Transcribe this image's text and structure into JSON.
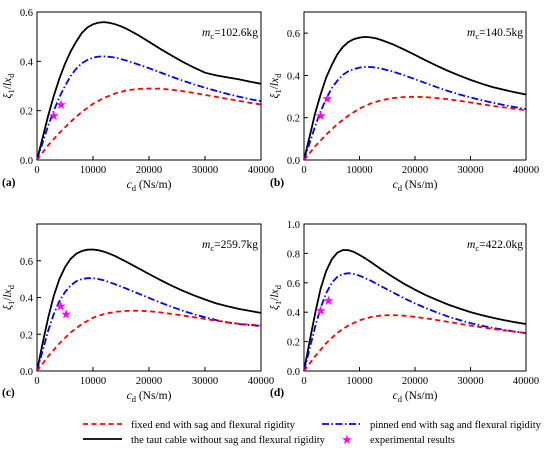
{
  "legend": {
    "fixed": "fixed end with sag and flexural rigidity",
    "pinned": "pinned end with sag and flexural rigidity",
    "taut": "the taut cable without sag and flexural rigidity",
    "experimental": "experimental results"
  },
  "styles": {
    "taut": {
      "color": "#000000",
      "dash": "none"
    },
    "pinned": {
      "color": "#0000ff",
      "dash": "7,2.5,1.5,2.5"
    },
    "fixed": {
      "color": "#ff0000",
      "dash": "5,3.5"
    },
    "experimental": {
      "color": "#ff00ff"
    }
  },
  "chart_data": [
    {
      "type": "line",
      "panel": "(a)",
      "annotation_mass": "102.6kg",
      "ylim": [
        0,
        0.6
      ],
      "yticks": [
        "0.0",
        "0.2",
        "0.4",
        "0.6"
      ],
      "xlim": [
        0,
        40000
      ],
      "xticks": [
        "0",
        "10000",
        "20000",
        "30000",
        "40000"
      ],
      "series": [
        {
          "key": "taut",
          "x": [
            0,
            1000,
            2000,
            3000,
            4000,
            5000,
            6000,
            7000,
            8000,
            9000,
            10000,
            11000,
            12000,
            13000,
            14000,
            15000,
            16000,
            18000,
            20000,
            22000,
            24000,
            26000,
            28000,
            30000,
            32000,
            34000,
            36000,
            38000,
            40000
          ],
          "y": [
            0,
            0.09,
            0.18,
            0.26,
            0.33,
            0.39,
            0.44,
            0.48,
            0.515,
            0.537,
            0.55,
            0.557,
            0.559,
            0.556,
            0.55,
            0.542,
            0.532,
            0.507,
            0.479,
            0.451,
            0.424,
            0.398,
            0.375,
            0.354,
            0.343,
            0.335,
            0.327,
            0.318,
            0.309
          ]
        },
        {
          "key": "pinned",
          "x": [
            0,
            1000,
            2000,
            3000,
            4000,
            5000,
            6000,
            7000,
            8000,
            9000,
            10000,
            11000,
            12000,
            13000,
            14000,
            16000,
            18000,
            20000,
            22000,
            24000,
            26000,
            28000,
            30000,
            32000,
            34000,
            36000,
            38000,
            40000
          ],
          "y": [
            0,
            0.07,
            0.14,
            0.2,
            0.255,
            0.3,
            0.34,
            0.37,
            0.392,
            0.406,
            0.415,
            0.419,
            0.42,
            0.418,
            0.415,
            0.403,
            0.388,
            0.372,
            0.355,
            0.338,
            0.322,
            0.307,
            0.293,
            0.28,
            0.268,
            0.257,
            0.247,
            0.238
          ]
        },
        {
          "key": "fixed",
          "x": [
            0,
            2000,
            4000,
            6000,
            8000,
            10000,
            12000,
            14000,
            16000,
            18000,
            20000,
            22000,
            24000,
            26000,
            28000,
            30000,
            32000,
            34000,
            36000,
            38000,
            40000
          ],
          "y": [
            0,
            0.06,
            0.11,
            0.155,
            0.195,
            0.228,
            0.252,
            0.27,
            0.282,
            0.288,
            0.29,
            0.289,
            0.285,
            0.279,
            0.272,
            0.264,
            0.256,
            0.248,
            0.24,
            0.232,
            0.225
          ]
        }
      ],
      "experimental": [
        [
          3000,
          0.18
        ],
        [
          4300,
          0.225
        ]
      ]
    },
    {
      "type": "line",
      "panel": "(b)",
      "annotation_mass": "140.5kg",
      "ylim": [
        0,
        0.7
      ],
      "yticks": [
        "0.0",
        "0.2",
        "0.4",
        "0.6"
      ],
      "xlim": [
        0,
        40000
      ],
      "xticks": [
        "0",
        "10000",
        "20000",
        "30000",
        "40000"
      ],
      "series": [
        {
          "key": "taut",
          "x": [
            0,
            1000,
            2000,
            3000,
            4000,
            5000,
            6000,
            7000,
            8000,
            9000,
            10000,
            11000,
            12000,
            13000,
            14000,
            16000,
            18000,
            20000,
            22000,
            24000,
            26000,
            28000,
            30000,
            32000,
            34000,
            36000,
            38000,
            40000
          ],
          "y": [
            0,
            0.11,
            0.22,
            0.31,
            0.39,
            0.45,
            0.5,
            0.535,
            0.558,
            0.572,
            0.579,
            0.582,
            0.58,
            0.575,
            0.567,
            0.547,
            0.523,
            0.497,
            0.47,
            0.445,
            0.421,
            0.399,
            0.379,
            0.361,
            0.345,
            0.332,
            0.32,
            0.31
          ]
        },
        {
          "key": "pinned",
          "x": [
            0,
            1000,
            2000,
            3000,
            4000,
            5000,
            6000,
            7000,
            8000,
            9000,
            10000,
            11000,
            12000,
            13000,
            14000,
            16000,
            18000,
            20000,
            22000,
            24000,
            26000,
            28000,
            30000,
            32000,
            34000,
            36000,
            38000,
            40000
          ],
          "y": [
            0,
            0.08,
            0.16,
            0.23,
            0.29,
            0.34,
            0.375,
            0.403,
            0.42,
            0.43,
            0.437,
            0.44,
            0.44,
            0.437,
            0.432,
            0.418,
            0.401,
            0.382,
            0.363,
            0.344,
            0.326,
            0.31,
            0.296,
            0.283,
            0.271,
            0.26,
            0.25,
            0.24
          ]
        },
        {
          "key": "fixed",
          "x": [
            0,
            2000,
            4000,
            6000,
            8000,
            10000,
            12000,
            14000,
            16000,
            18000,
            20000,
            22000,
            24000,
            26000,
            28000,
            30000,
            32000,
            34000,
            36000,
            38000,
            40000
          ],
          "y": [
            0,
            0.065,
            0.12,
            0.17,
            0.21,
            0.243,
            0.267,
            0.283,
            0.293,
            0.298,
            0.299,
            0.297,
            0.293,
            0.287,
            0.28,
            0.272,
            0.264,
            0.256,
            0.249,
            0.242,
            0.235
          ]
        }
      ],
      "experimental": [
        [
          3000,
          0.21
        ],
        [
          4200,
          0.29
        ]
      ]
    },
    {
      "type": "line",
      "panel": "(c)",
      "annotation_mass": "259.7kg",
      "ylim": [
        0,
        0.8
      ],
      "yticks": [
        "0.0",
        "0.2",
        "0.4",
        "0.6"
      ],
      "xlim": [
        0,
        40000
      ],
      "xticks": [
        "0",
        "10000",
        "20000",
        "30000",
        "40000"
      ],
      "series": [
        {
          "key": "taut",
          "x": [
            0,
            1000,
            2000,
            3000,
            4000,
            5000,
            6000,
            7000,
            8000,
            9000,
            10000,
            11000,
            12000,
            13000,
            14000,
            16000,
            18000,
            20000,
            22000,
            24000,
            26000,
            28000,
            30000,
            32000,
            34000,
            36000,
            38000,
            40000
          ],
          "y": [
            0,
            0.15,
            0.29,
            0.41,
            0.5,
            0.565,
            0.61,
            0.638,
            0.653,
            0.66,
            0.661,
            0.657,
            0.649,
            0.638,
            0.625,
            0.594,
            0.561,
            0.528,
            0.496,
            0.465,
            0.437,
            0.412,
            0.389,
            0.368,
            0.352,
            0.338,
            0.327,
            0.316
          ]
        },
        {
          "key": "pinned",
          "x": [
            0,
            1000,
            2000,
            3000,
            4000,
            5000,
            6000,
            7000,
            8000,
            9000,
            10000,
            11000,
            12000,
            14000,
            16000,
            18000,
            20000,
            22000,
            24000,
            26000,
            28000,
            30000,
            32000,
            34000,
            36000,
            38000,
            40000
          ],
          "y": [
            0,
            0.11,
            0.22,
            0.31,
            0.38,
            0.43,
            0.465,
            0.488,
            0.5,
            0.505,
            0.505,
            0.5,
            0.493,
            0.472,
            0.448,
            0.423,
            0.398,
            0.373,
            0.35,
            0.328,
            0.309,
            0.292,
            0.277,
            0.264,
            0.255,
            0.25,
            0.245
          ]
        },
        {
          "key": "fixed",
          "x": [
            0,
            2000,
            4000,
            6000,
            8000,
            10000,
            12000,
            14000,
            16000,
            18000,
            20000,
            22000,
            24000,
            26000,
            28000,
            30000,
            32000,
            34000,
            36000,
            38000,
            40000
          ],
          "y": [
            0,
            0.08,
            0.15,
            0.21,
            0.255,
            0.29,
            0.31,
            0.322,
            0.327,
            0.328,
            0.325,
            0.319,
            0.311,
            0.302,
            0.293,
            0.283,
            0.274,
            0.265,
            0.258,
            0.252,
            0.248
          ]
        }
      ],
      "experimental": [
        [
          4200,
          0.355
        ],
        [
          5200,
          0.31
        ]
      ]
    },
    {
      "type": "line",
      "panel": "(d)",
      "annotation_mass": "422.0kg",
      "ylim": [
        0,
        1.0
      ],
      "yticks": [
        "0.0",
        "0.2",
        "0.4",
        "0.6",
        "0.8",
        "1.0"
      ],
      "xlim": [
        0,
        40000
      ],
      "xticks": [
        "0",
        "10000",
        "20000",
        "30000",
        "40000"
      ],
      "series": [
        {
          "key": "taut",
          "x": [
            0,
            1000,
            2000,
            3000,
            4000,
            5000,
            6000,
            7000,
            8000,
            9000,
            10000,
            11000,
            12000,
            14000,
            16000,
            18000,
            20000,
            22000,
            24000,
            26000,
            28000,
            30000,
            32000,
            34000,
            36000,
            38000,
            40000
          ],
          "y": [
            0,
            0.2,
            0.39,
            0.56,
            0.68,
            0.76,
            0.805,
            0.823,
            0.822,
            0.81,
            0.79,
            0.767,
            0.742,
            0.69,
            0.64,
            0.594,
            0.553,
            0.515,
            0.482,
            0.452,
            0.425,
            0.401,
            0.38,
            0.362,
            0.346,
            0.332,
            0.32
          ]
        },
        {
          "key": "pinned",
          "x": [
            0,
            1000,
            2000,
            3000,
            4000,
            5000,
            6000,
            7000,
            8000,
            9000,
            10000,
            11000,
            12000,
            14000,
            16000,
            18000,
            20000,
            22000,
            24000,
            26000,
            28000,
            30000,
            32000,
            34000,
            36000,
            38000,
            40000
          ],
          "y": [
            0,
            0.15,
            0.3,
            0.43,
            0.53,
            0.6,
            0.64,
            0.66,
            0.665,
            0.66,
            0.648,
            0.632,
            0.615,
            0.575,
            0.535,
            0.496,
            0.46,
            0.427,
            0.397,
            0.37,
            0.347,
            0.326,
            0.308,
            0.293,
            0.28,
            0.268,
            0.258
          ]
        },
        {
          "key": "fixed",
          "x": [
            0,
            2000,
            4000,
            6000,
            8000,
            10000,
            12000,
            14000,
            16000,
            18000,
            20000,
            22000,
            24000,
            26000,
            28000,
            30000,
            32000,
            34000,
            36000,
            38000,
            40000
          ],
          "y": [
            0,
            0.1,
            0.19,
            0.26,
            0.31,
            0.345,
            0.367,
            0.378,
            0.38,
            0.376,
            0.368,
            0.358,
            0.346,
            0.334,
            0.321,
            0.309,
            0.297,
            0.286,
            0.276,
            0.267,
            0.258
          ]
        }
      ],
      "experimental": [
        [
          3000,
          0.41
        ],
        [
          4400,
          0.48
        ]
      ]
    }
  ]
}
